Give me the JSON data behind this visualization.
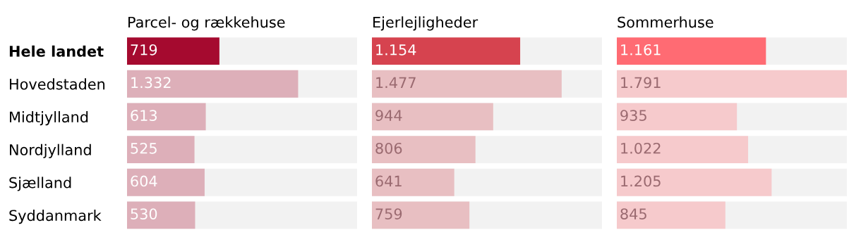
{
  "chart_data": [
    {
      "type": "bar",
      "orientation": "horizontal",
      "title": "Parcel- og rækkehuse",
      "categories": [
        "Hele landet",
        "Hovedstaden",
        "Midtjylland",
        "Nordjylland",
        "Sjælland",
        "Syddanmark"
      ],
      "tick_labels": "y",
      "values": [
        719,
        1332,
        613,
        525,
        604,
        530
      ],
      "value_labels": [
        "719",
        "1.332",
        "613",
        "525",
        "604",
        "530"
      ],
      "colors": [
        "#a50a2f",
        "#ddafb9",
        "#ddafb9",
        "#ddafb9",
        "#ddafb9",
        "#ddafb9"
      ]
    },
    {
      "type": "bar",
      "orientation": "horizontal",
      "title": "Ejerlejligheder",
      "categories": [
        null,
        null,
        null,
        null,
        null,
        null
      ],
      "tick_labels": false,
      "values": [
        1154,
        1477,
        944,
        806,
        641,
        759
      ],
      "value_labels": [
        "1.154",
        "1.477",
        "944",
        "806",
        "641",
        "759"
      ],
      "colors": [
        "#d6434f",
        "#e8bfc2",
        "#e8bfc2",
        "#e8bfc2",
        "#e8bfc2",
        "#e8bfc2"
      ]
    },
    {
      "type": "bar",
      "orientation": "horizontal",
      "title": "Sommerhuse",
      "categories": [
        null,
        null,
        null,
        null,
        null,
        null
      ],
      "tick_labels": false,
      "values": [
        1161,
        1791,
        935,
        1022,
        1205,
        845
      ],
      "value_labels": [
        "1.161",
        "1.791",
        "935",
        "1.022",
        "1.205",
        "845"
      ],
      "colors": [
        "#ff6b73",
        "#f6cacc",
        "#f6cacc",
        "#f6cacc",
        "#f6cacc",
        "#f6cacc"
      ]
    }
  ]
}
